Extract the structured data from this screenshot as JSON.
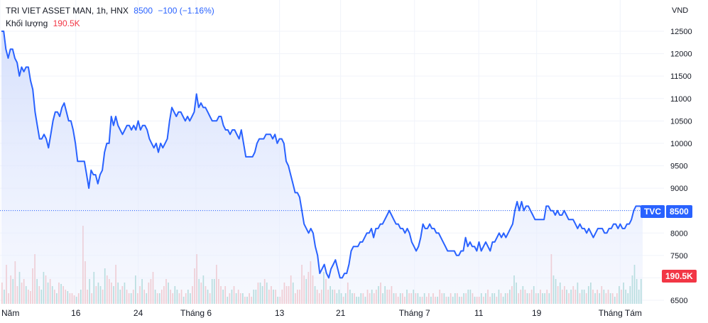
{
  "header": {
    "symbol": "TRI VIET ASSET MAN, 1h, HNX",
    "price": "8500",
    "change": "−100 (−1.16%)",
    "volume_label": "Khối lượng",
    "volume_value": "190.5K"
  },
  "tags": {
    "exchange": "TVC",
    "last_price": "8500",
    "last_volume": "190.5K"
  },
  "colors": {
    "line": "#2962ff",
    "area": "#e3eafd",
    "vol_up": "#7fc8bd",
    "vol_down": "#f3a6a6",
    "grid": "#f0f3fa"
  },
  "chart_data": {
    "type": "area",
    "currency": "VND",
    "y_ticks": [
      6500,
      7000,
      7500,
      8000,
      8500,
      9000,
      9500,
      10000,
      10500,
      11000,
      11500,
      12000,
      12500
    ],
    "y_tick_labels": [
      "6500",
      "",
      "7500",
      "8000",
      "",
      "9000",
      "9500",
      "10000",
      "10500",
      "11000",
      "11500",
      "12000",
      "12500"
    ],
    "ylim": [
      6400,
      12800
    ],
    "x_labels": [
      "Năm",
      "16",
      "24",
      "Tháng 6",
      "13",
      "21",
      "Tháng 7",
      "11",
      "19",
      "Tháng Tám"
    ],
    "last_price": 8500,
    "series": [
      {
        "values": [
          12500,
          12500,
          12100,
          11900,
          12100,
          12100,
          11900,
          11800,
          11500,
          11700,
          11600,
          11700,
          11700,
          11400,
          11200,
          10700,
          10400,
          10100,
          10100,
          10200,
          10100,
          9900,
          10200,
          10500,
          10700,
          10700,
          10600,
          10800,
          10900,
          10700,
          10500,
          10500,
          10300,
          10000,
          9600,
          9600,
          9600,
          9600,
          9300,
          9000,
          9400,
          9300,
          9300,
          9100,
          9300,
          9400,
          9800,
          10000,
          10000,
          10600,
          10400,
          10600,
          10400,
          10300,
          10200,
          10300,
          10400,
          10400,
          10300,
          10400,
          10300,
          10500,
          10300,
          10400,
          10400,
          10300,
          10100,
          10000,
          9900,
          10000,
          9800,
          10000,
          9900,
          10000,
          10100,
          10500,
          10800,
          10700,
          10600,
          10700,
          10700,
          10600,
          10500,
          10600,
          10500,
          10600,
          10700,
          11100,
          10800,
          10900,
          10800,
          10800,
          10700,
          10600,
          10500,
          10500,
          10500,
          10600,
          10600,
          10400,
          10300,
          10300,
          10200,
          10300,
          10300,
          10200,
          10100,
          10300,
          10000,
          9700,
          9700,
          9700,
          9700,
          9800,
          10000,
          10100,
          10100,
          10100,
          10200,
          10200,
          10200,
          10100,
          10200,
          10000,
          10100,
          10100,
          10000,
          9600,
          9500,
          9300,
          9100,
          8900,
          8900,
          8800,
          8500,
          8200,
          8100,
          8000,
          8100,
          8000,
          7700,
          7500,
          7100,
          7200,
          7300,
          7100,
          7000,
          7200,
          7300,
          7400,
          7200,
          7000,
          7000,
          7100,
          7100,
          7300,
          7600,
          7700,
          7700,
          7700,
          7800,
          7800,
          7900,
          8000,
          8000,
          8100,
          7900,
          8100,
          8100,
          8200,
          8200,
          8300,
          8400,
          8500,
          8400,
          8300,
          8200,
          8200,
          8100,
          8100,
          8000,
          8100,
          8000,
          7800,
          7700,
          7600,
          7700,
          7900,
          8200,
          8100,
          8100,
          8200,
          8100,
          8100,
          8000,
          8000,
          7900,
          7800,
          7700,
          7600,
          7600,
          7600,
          7600,
          7500,
          7500,
          7600,
          7600,
          7900,
          7700,
          7800,
          7700,
          7700,
          7600,
          7800,
          7600,
          7700,
          7800,
          7700,
          7600,
          7800,
          7800,
          7900,
          8000,
          7900,
          8000,
          7900,
          8000,
          8100,
          8200,
          8500,
          8700,
          8500,
          8700,
          8500,
          8600,
          8600,
          8500,
          8400,
          8300,
          8300,
          8300,
          8300,
          8300,
          8600,
          8600,
          8500,
          8500,
          8400,
          8500,
          8400,
          8400,
          8500,
          8400,
          8300,
          8300,
          8300,
          8200,
          8100,
          8200,
          8100,
          8100,
          8000,
          8100,
          8000,
          7900,
          8000,
          8100,
          8100,
          8100,
          8000,
          8000,
          8100,
          8100,
          8200,
          8200,
          8100,
          8200,
          8100,
          8100,
          8200,
          8200,
          8300,
          8500,
          8600,
          8600,
          8600,
          8500
        ]
      }
    ],
    "volume": {
      "values": [
        30,
        20,
        55,
        15,
        40,
        35,
        60,
        25,
        45,
        30,
        35,
        25,
        20,
        18,
        50,
        70,
        35,
        25,
        20,
        45,
        40,
        30,
        35,
        25,
        20,
        15,
        30,
        28,
        25,
        20,
        18,
        15,
        15,
        12,
        10,
        15,
        20,
        110,
        60,
        20,
        35,
        15,
        45,
        25,
        30,
        25,
        20,
        50,
        40,
        35,
        30,
        25,
        55,
        30,
        20,
        25,
        30,
        20,
        15,
        15,
        20,
        40,
        15,
        25,
        35,
        20,
        15,
        30,
        35,
        45,
        20,
        15,
        15,
        20,
        25,
        35,
        30,
        20,
        15,
        25,
        20,
        15,
        20,
        10,
        15,
        20,
        15,
        25,
        50,
        70,
        35,
        30,
        40,
        25,
        20,
        15,
        35,
        35,
        55,
        35,
        25,
        20,
        25,
        10,
        15,
        20,
        25,
        15,
        20,
        15,
        15,
        10,
        10,
        15,
        10,
        20,
        20,
        30,
        30,
        25,
        35,
        30,
        20,
        25,
        20,
        20,
        10,
        10,
        20,
        30,
        25,
        25,
        40,
        30,
        15,
        20,
        20,
        55,
        40,
        35,
        45,
        60,
        40,
        25,
        20,
        15,
        20,
        45,
        35,
        20,
        25,
        20,
        20,
        15,
        20,
        15,
        10,
        15,
        30,
        20,
        15,
        15,
        10,
        10,
        15,
        15,
        10,
        20,
        15,
        20,
        15,
        20,
        25,
        30,
        15,
        25,
        20,
        20,
        25,
        15,
        15,
        10,
        15,
        15,
        10,
        20,
        15,
        15,
        20,
        15,
        15,
        10,
        10,
        15,
        10,
        15,
        10,
        15,
        10,
        10,
        20,
        15,
        15,
        10,
        10,
        15,
        10,
        15,
        15,
        10,
        10,
        15,
        15,
        20,
        20,
        15,
        10,
        10,
        10,
        15,
        10,
        15,
        20,
        10,
        15,
        15,
        10,
        20,
        15,
        10,
        15,
        15,
        20,
        25,
        40,
        30,
        15,
        20,
        25,
        20,
        15,
        15,
        20,
        25,
        15,
        15,
        20,
        15,
        15,
        20,
        15,
        70,
        40,
        35,
        25,
        30,
        20,
        25,
        20,
        15,
        20,
        25,
        20,
        30,
        15,
        20,
        20,
        15,
        25,
        30,
        20,
        15,
        20,
        15,
        25,
        20,
        15,
        20,
        15,
        15,
        10,
        15,
        25,
        20,
        30,
        20,
        15,
        25,
        40,
        55,
        35,
        20,
        35
      ],
      "down": [
        true,
        false,
        true,
        true,
        true,
        false,
        true,
        true,
        false,
        true,
        true,
        false,
        true,
        true,
        true,
        true,
        false,
        true,
        false,
        false,
        true,
        false,
        true,
        false,
        true,
        false,
        true,
        false,
        true,
        true,
        false,
        true,
        true,
        true,
        false,
        true,
        false,
        true,
        true,
        true,
        false,
        true,
        false,
        true,
        false,
        false,
        true,
        false,
        true,
        true,
        true,
        false,
        true,
        false,
        false,
        true,
        false,
        true,
        true,
        false,
        true,
        false,
        true,
        true,
        false,
        true,
        false,
        true,
        true,
        true,
        false,
        true,
        false,
        true,
        true,
        true,
        false,
        true,
        true,
        false,
        false,
        true,
        true,
        false,
        true,
        false,
        false,
        true,
        true,
        true,
        false,
        true,
        false,
        true,
        false,
        true,
        false,
        false,
        true,
        true,
        true,
        false,
        true,
        false,
        true,
        false,
        true,
        false,
        true,
        true,
        false,
        true,
        false,
        true,
        true,
        false,
        false,
        true,
        false,
        false,
        true,
        false,
        true,
        true,
        false,
        true,
        false,
        true,
        true,
        true,
        true,
        true,
        true,
        false,
        true,
        true,
        true,
        true,
        true,
        false,
        true,
        true,
        true,
        false,
        true,
        true,
        true,
        false,
        true,
        true,
        false,
        false,
        true,
        false,
        false,
        false,
        true,
        false,
        true,
        false,
        false,
        true,
        false,
        false,
        false,
        true,
        false,
        true,
        true,
        false,
        true,
        true,
        false,
        true,
        false,
        false,
        true,
        true,
        true,
        false,
        true,
        true,
        false,
        true,
        true,
        false,
        true,
        true,
        false,
        true,
        false,
        false,
        true,
        false,
        true,
        true,
        false,
        true,
        true,
        false,
        true,
        true,
        false,
        true,
        false,
        true,
        false,
        false,
        true,
        false,
        true,
        false,
        true,
        false,
        false,
        true,
        false,
        true,
        true,
        false,
        true,
        false,
        true,
        true,
        false,
        false,
        true,
        false,
        true,
        false,
        false,
        true,
        false,
        true,
        false,
        false,
        true,
        true,
        false,
        true,
        false,
        true,
        true,
        false,
        true,
        false,
        true,
        false,
        false,
        true,
        false,
        true,
        false,
        false,
        true,
        false,
        true,
        true,
        false,
        true,
        false,
        true,
        true,
        false,
        true,
        false,
        false,
        true,
        false,
        false,
        true,
        false,
        true,
        false,
        true,
        false,
        true,
        true,
        false,
        true,
        false,
        true,
        false,
        true
      ]
    }
  }
}
